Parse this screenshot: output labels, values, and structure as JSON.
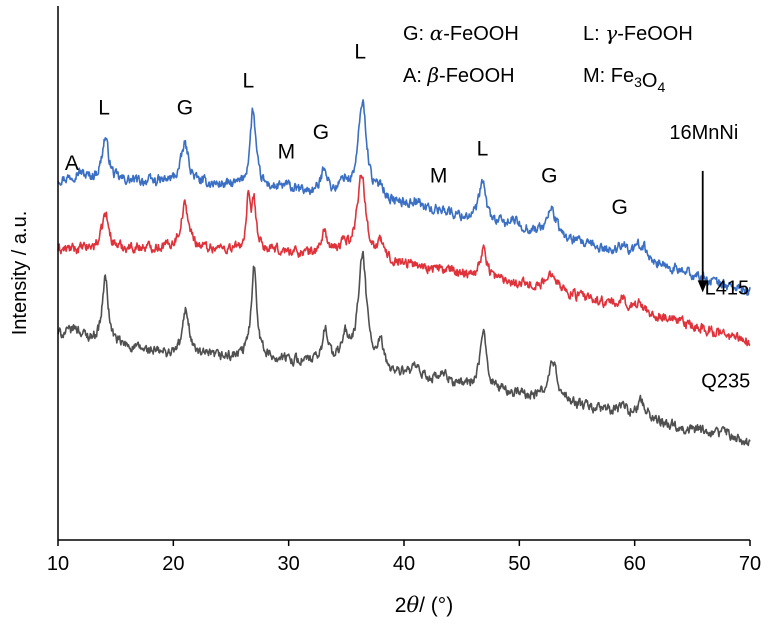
{
  "chart_data": {
    "type": "line",
    "xlabel_prefix": "2",
    "xlabel_symbol": "θ",
    "xlabel_suffix": "/ (°)",
    "ylabel": "Intensity / a.u.",
    "xlim": [
      10,
      70
    ],
    "xticks": [
      10,
      20,
      30,
      40,
      50,
      60,
      70
    ],
    "yticks_shown": false,
    "grid": false,
    "legend": {
      "position": "top-right",
      "entries": [
        {
          "code": "G:",
          "greek": "α",
          "phase": "-FeOOH"
        },
        {
          "code": "L:",
          "greek": "γ",
          "phase": "-FeOOH"
        },
        {
          "code": "A:",
          "greek": "β",
          "phase": "-FeOOH"
        },
        {
          "code": "M:",
          "formula": "Fe3O4"
        }
      ]
    },
    "series": [
      {
        "name": "16MnNi",
        "color": "#3a6fc4",
        "baseline": [
          [
            10,
            3.05
          ],
          [
            20,
            3.02
          ],
          [
            30,
            2.92
          ],
          [
            40,
            2.72
          ],
          [
            50,
            2.42
          ],
          [
            60,
            2.05
          ],
          [
            70,
            1.6
          ]
        ],
        "peaks": [
          [
            11.8,
            0.1,
            0.6
          ],
          [
            14.1,
            0.55,
            0.35
          ],
          [
            21.0,
            0.5,
            0.4
          ],
          [
            26.9,
            1.0,
            0.3
          ],
          [
            29.8,
            0.05,
            0.3
          ],
          [
            33.1,
            0.35,
            0.3
          ],
          [
            34.8,
            0.18,
            0.4
          ],
          [
            36.4,
            1.25,
            0.45
          ],
          [
            38.0,
            0.18,
            0.3
          ],
          [
            41.0,
            0.08,
            0.5
          ],
          [
            43.5,
            0.05,
            0.4
          ],
          [
            46.8,
            0.5,
            0.35
          ],
          [
            49.5,
            0.08,
            0.5
          ],
          [
            52.8,
            0.35,
            0.5
          ],
          [
            59.0,
            0.15,
            0.35
          ],
          [
            60.6,
            0.2,
            0.5
          ]
        ]
      },
      {
        "name": "L415",
        "color": "#e0323a",
        "baseline": [
          [
            10,
            2.15
          ],
          [
            20,
            2.18
          ],
          [
            30,
            2.12
          ],
          [
            40,
            1.97
          ],
          [
            50,
            1.72
          ],
          [
            60,
            1.37
          ],
          [
            70,
            0.96
          ]
        ],
        "peaks": [
          [
            14.1,
            0.45,
            0.35
          ],
          [
            21.0,
            0.55,
            0.4
          ],
          [
            26.5,
            0.6,
            0.2
          ],
          [
            27.0,
            0.6,
            0.22
          ],
          [
            33.1,
            0.3,
            0.3
          ],
          [
            34.8,
            0.15,
            0.4
          ],
          [
            36.3,
            1.1,
            0.45
          ],
          [
            38.0,
            0.2,
            0.3
          ],
          [
            46.9,
            0.35,
            0.35
          ],
          [
            52.9,
            0.25,
            0.5
          ],
          [
            59.0,
            0.1,
            0.35
          ],
          [
            60.5,
            0.1,
            0.5
          ]
        ]
      },
      {
        "name": "Q235",
        "color": "#505050",
        "baseline": [
          [
            10,
            1.05
          ],
          [
            20,
            0.78
          ],
          [
            30,
            0.72
          ],
          [
            40,
            0.52
          ],
          [
            50,
            0.28
          ],
          [
            60,
            0.0
          ],
          [
            70,
            -0.35
          ]
        ],
        "peaks": [
          [
            11.5,
            0.12,
            0.6
          ],
          [
            14.1,
            0.85,
            0.3
          ],
          [
            21.1,
            0.6,
            0.35
          ],
          [
            27.0,
            1.2,
            0.3
          ],
          [
            33.2,
            0.45,
            0.3
          ],
          [
            34.9,
            0.35,
            0.4
          ],
          [
            36.4,
            1.45,
            0.45
          ],
          [
            38.0,
            0.3,
            0.3
          ],
          [
            41.0,
            0.1,
            0.5
          ],
          [
            43.4,
            0.08,
            0.4
          ],
          [
            46.9,
            0.7,
            0.35
          ],
          [
            52.9,
            0.5,
            0.45
          ],
          [
            59.0,
            0.1,
            0.35
          ],
          [
            60.6,
            0.2,
            0.5
          ],
          [
            68.0,
            0.08,
            0.5
          ]
        ]
      }
    ],
    "peak_labels": [
      {
        "text": "A",
        "x": 11.2,
        "y": 3.18
      },
      {
        "text": "L",
        "x": 14.0,
        "y": 3.9
      },
      {
        "text": "G",
        "x": 21.0,
        "y": 3.9
      },
      {
        "text": "L",
        "x": 26.5,
        "y": 4.25
      },
      {
        "text": "M",
        "x": 29.8,
        "y": 3.33
      },
      {
        "text": "G",
        "x": 32.8,
        "y": 3.58
      },
      {
        "text": "L",
        "x": 36.2,
        "y": 4.62
      },
      {
        "text": "M",
        "x": 43.0,
        "y": 3.02
      },
      {
        "text": "L",
        "x": 46.8,
        "y": 3.37
      },
      {
        "text": "G",
        "x": 52.6,
        "y": 3.02
      },
      {
        "text": "G",
        "x": 58.7,
        "y": 2.61
      }
    ],
    "series_labels": [
      {
        "text": "16MnNi",
        "x": 66.0,
        "y": 3.58
      },
      {
        "text": "L415",
        "x": 68.0,
        "y": 1.57
      },
      {
        "text": "Q235",
        "x": 67.9,
        "y": 0.37
      }
    ],
    "arrow": {
      "from": [
        65.9,
        3.17
      ],
      "to": [
        65.9,
        1.6
      ]
    }
  }
}
